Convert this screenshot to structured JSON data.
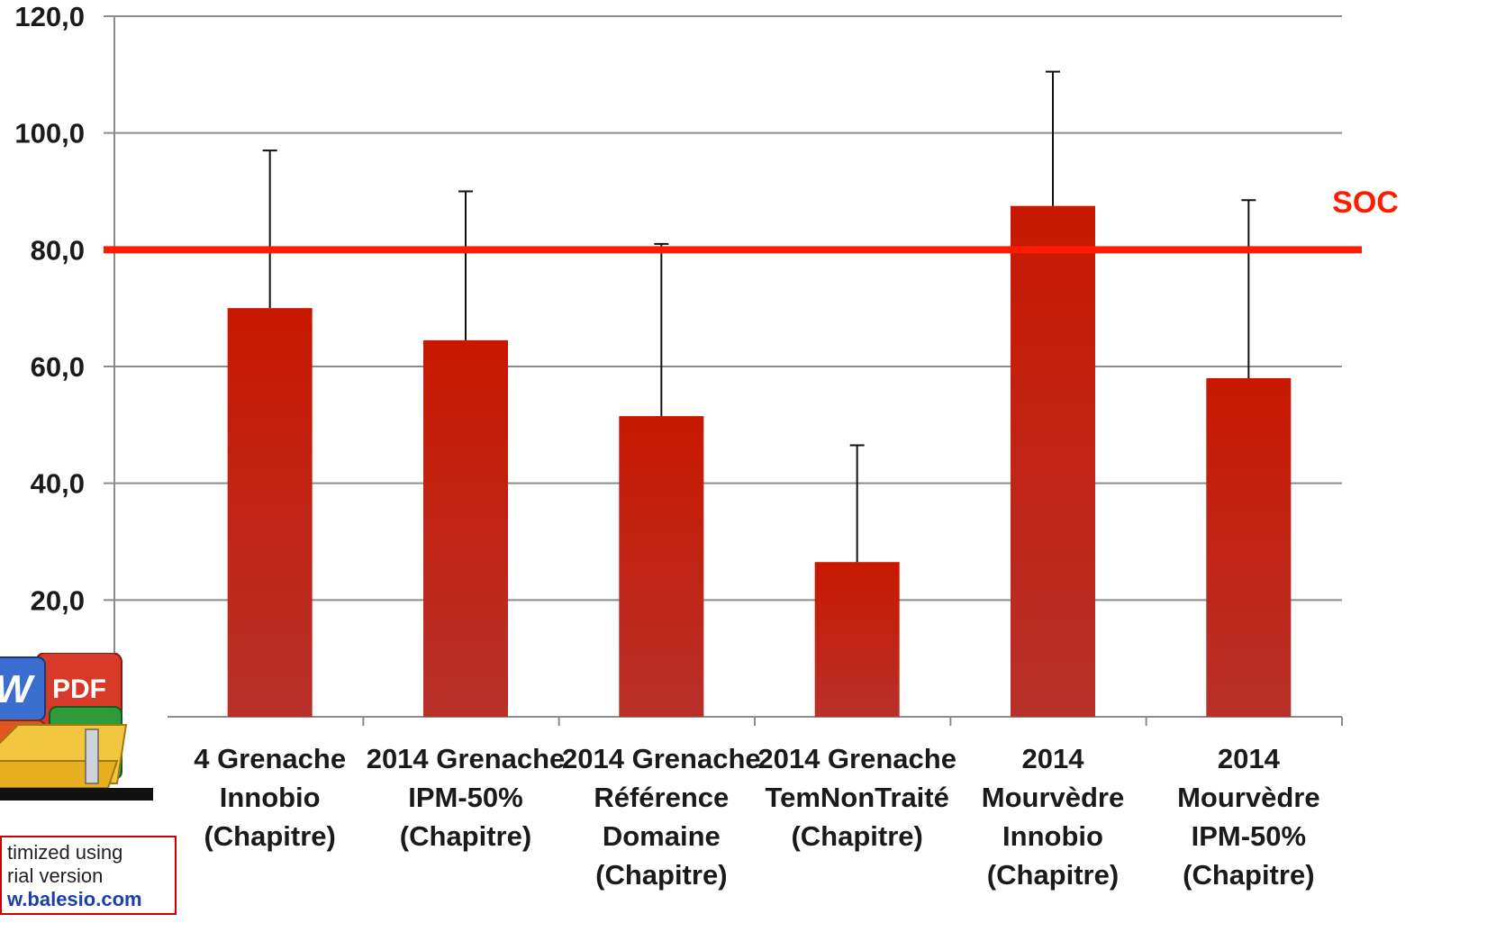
{
  "chart_data": {
    "type": "bar",
    "title": "",
    "xlabel": "",
    "ylabel": "",
    "ylim": [
      0,
      120
    ],
    "yticks": [
      "20,0",
      "40,0",
      "60,0",
      "80,0",
      "100,0",
      "120,0"
    ],
    "ytick_values": [
      20,
      40,
      60,
      80,
      100,
      120
    ],
    "grid": true,
    "categories": [
      [
        "4 Grenache",
        "Innobio",
        "(Chapitre)"
      ],
      [
        "2014 Grenache",
        "IPM-50%",
        "(Chapitre)"
      ],
      [
        "2014 Grenache",
        "Référence",
        "Domaine",
        "(Chapitre)"
      ],
      [
        "2014 Grenache",
        "TemNonTraité",
        "(Chapitre)"
      ],
      [
        "2014",
        "Mourvèdre",
        "Innobio",
        "(Chapitre)"
      ],
      [
        "2014",
        "Mourvèdre",
        "IPM-50%",
        "(Chapitre)"
      ]
    ],
    "values": [
      70.0,
      64.5,
      51.5,
      26.5,
      87.5,
      58.0
    ],
    "error_upper": [
      97.0,
      90.0,
      81.0,
      46.5,
      110.5,
      88.5
    ],
    "bar_color": "#c41a0a",
    "reference_line": {
      "value": 80,
      "label": "SOC",
      "color": "#ff1a00"
    }
  },
  "watermark": {
    "line1": "timized using",
    "line2": "rial version",
    "line3": "w.balesio.com",
    "icon_badge": "PDF"
  }
}
